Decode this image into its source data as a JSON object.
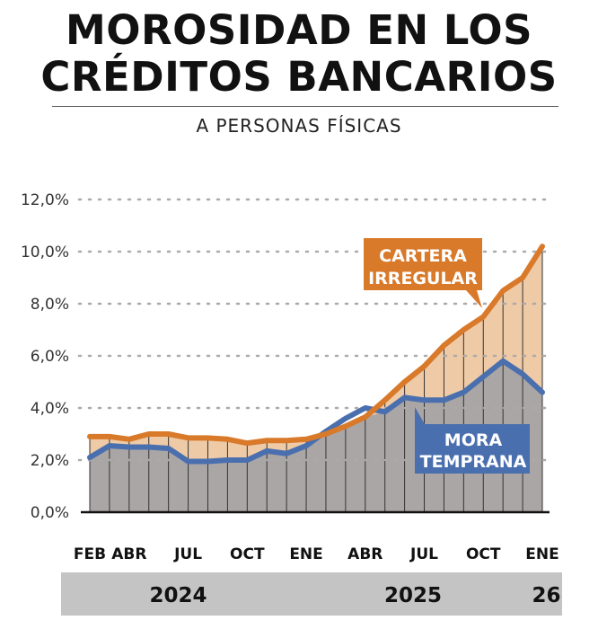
{
  "header": {
    "title_line1": "MOROSIDAD EN LOS",
    "title_line2": "CRÉDITOS BANCARIOS",
    "subtitle": "A PERSONAS FÍSICAS"
  },
  "colors": {
    "orange": "#d9792a",
    "blue": "#4a6fae",
    "orange_fill": "#efcaa6",
    "gray_fill": "#aaa6a6",
    "year_bar": "#c4c4c4"
  },
  "chart_data": {
    "type": "line",
    "title": "MOROSIDAD EN LOS CRÉDITOS BANCARIOS",
    "subtitle": "A PERSONAS FÍSICAS",
    "x": [
      "2024-02",
      "2024-03",
      "2024-04",
      "2024-05",
      "2024-06",
      "2024-07",
      "2024-08",
      "2024-09",
      "2024-10",
      "2024-11",
      "2024-12",
      "2025-01",
      "2025-02",
      "2025-03",
      "2025-04",
      "2025-05",
      "2025-06",
      "2025-07",
      "2025-08",
      "2025-09",
      "2025-10",
      "2025-11",
      "2025-12",
      "2026-01"
    ],
    "x_tick_labels": [
      {
        "index": 0,
        "label": "FEB"
      },
      {
        "index": 2,
        "label": "ABR"
      },
      {
        "index": 5,
        "label": "JUL"
      },
      {
        "index": 8,
        "label": "OCT"
      },
      {
        "index": 11,
        "label": "ENE"
      },
      {
        "index": 14,
        "label": "ABR"
      },
      {
        "index": 17,
        "label": "JUL"
      },
      {
        "index": 20,
        "label": "OCT"
      },
      {
        "index": 23,
        "label": "ENE"
      }
    ],
    "years": [
      {
        "label": "2024",
        "from": 0,
        "to": 10
      },
      {
        "label": "2025",
        "from": 11,
        "to": 22
      },
      {
        "label": "26",
        "from": 23,
        "to": 23
      }
    ],
    "y_ticks": [
      "0,0%",
      "2,0%",
      "4,0%",
      "6,0%",
      "8,0%",
      "10,0%",
      "12,0%"
    ],
    "ylim": [
      0,
      12
    ],
    "grid": true,
    "series": [
      {
        "name": "CARTERA IRREGULAR",
        "values": [
          2.9,
          2.9,
          2.8,
          3.0,
          3.0,
          2.85,
          2.85,
          2.8,
          2.65,
          2.75,
          2.75,
          2.8,
          3.0,
          3.3,
          3.65,
          4.3,
          5.0,
          5.6,
          6.4,
          7.0,
          7.5,
          8.5,
          9.0,
          10.2
        ]
      },
      {
        "name": "MORA TEMPRANA",
        "values": [
          2.1,
          2.55,
          2.5,
          2.5,
          2.45,
          1.95,
          1.95,
          2.0,
          2.0,
          2.35,
          2.25,
          2.55,
          3.1,
          3.6,
          4.0,
          3.85,
          4.4,
          4.3,
          4.3,
          4.6,
          5.2,
          5.8,
          5.3,
          4.6
        ]
      }
    ],
    "annotations": [
      {
        "series": 0,
        "label_line1": "CARTERA",
        "label_line2": "IRREGULAR"
      },
      {
        "series": 1,
        "label_line1": "MORA",
        "label_line2": "TEMPRANA"
      }
    ]
  }
}
